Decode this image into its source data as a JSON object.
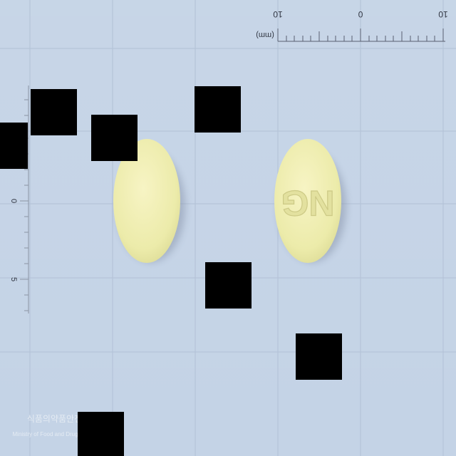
{
  "scale": {
    "unit_label": "(mm)",
    "top_numbers": [
      "10",
      "0",
      "10"
    ],
    "side_numbers": [
      "0",
      "5"
    ]
  },
  "tablet": {
    "color": "#f2efb0",
    "imprint_back": "NG"
  },
  "watermark": {
    "line1": "식품의약품안전처",
    "line2": "Ministry of Food and Drug Safety"
  },
  "colors": {
    "background": "#c4d3e6",
    "grid": "#b2c1d6",
    "redaction": "#000000"
  }
}
